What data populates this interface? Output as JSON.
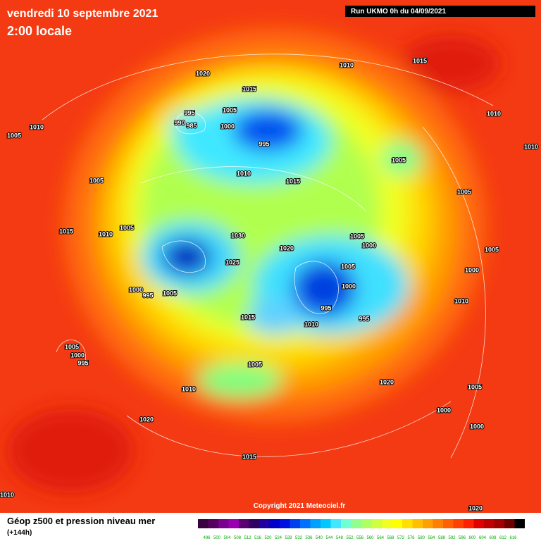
{
  "header": {
    "title": "vendredi 10 septembre 2021",
    "subtitle": "2:00 locale",
    "run": "Run UKMO 0h du 04/09/2021"
  },
  "isobars": [
    1020,
    1010,
    1015,
    1015,
    995,
    1005,
    990,
    985,
    1000,
    995,
    1010,
    1005,
    1010,
    1010,
    1005,
    1010,
    1015,
    1005,
    1005,
    1015,
    1010,
    1005,
    1030,
    1020,
    1005,
    1000,
    1005,
    1025,
    1005,
    1000,
    1000,
    1000,
    995,
    1005,
    1010,
    995,
    1015,
    995,
    1010,
    1005,
    1000,
    995,
    1005,
    1020,
    1010,
    1005,
    1000,
    1020,
    1000,
    1015,
    1010,
    1020
  ],
  "copyright": "Copyright 2021 Meteociel.fr",
  "legend": {
    "title": "Géop z500 et pression niveau mer",
    "lead": "(+144h)",
    "scale": [
      496,
      500,
      504,
      508,
      512,
      516,
      520,
      524,
      528,
      532,
      536,
      540,
      544,
      548,
      552,
      556,
      560,
      564,
      568,
      572,
      576,
      580,
      584,
      588,
      592,
      596,
      600,
      604,
      608,
      612,
      616
    ]
  }
}
